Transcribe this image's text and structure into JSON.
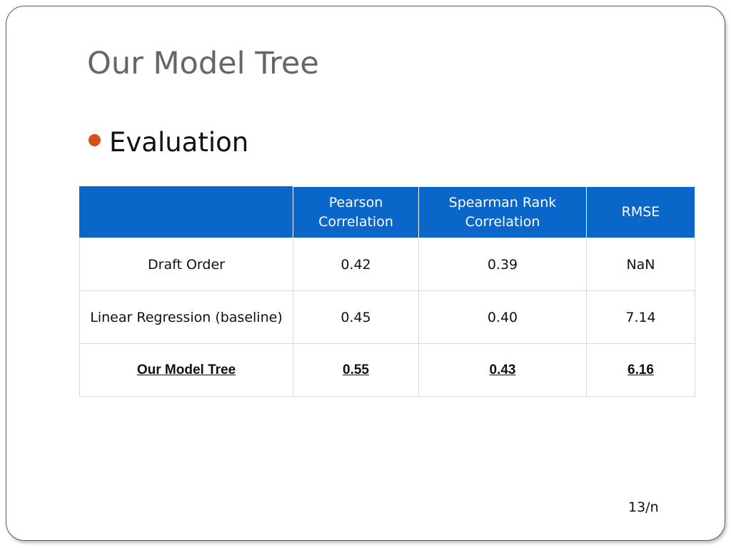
{
  "slide": {
    "title": "Our Model Tree",
    "bullet": "Evaluation",
    "page_number": "13/n",
    "colors": {
      "title": "#666666",
      "bullet_dot": "#d6501b",
      "table_header_bg": "#0a66c8",
      "table_header_text": "#ffffff",
      "table_border": "#d9d9d9"
    }
  },
  "table": {
    "headers": [
      "",
      "Pearson Correlation",
      "Spearman Rank Correlation",
      "RMSE"
    ],
    "rows": [
      [
        "Draft Order",
        "0.42",
        "0.39",
        "NaN"
      ],
      [
        "Linear Regression (baseline)",
        "0.45",
        "0.40",
        "7.14"
      ],
      [
        "Our Model Tree",
        "0.55",
        "0.43",
        "6.16"
      ]
    ]
  }
}
